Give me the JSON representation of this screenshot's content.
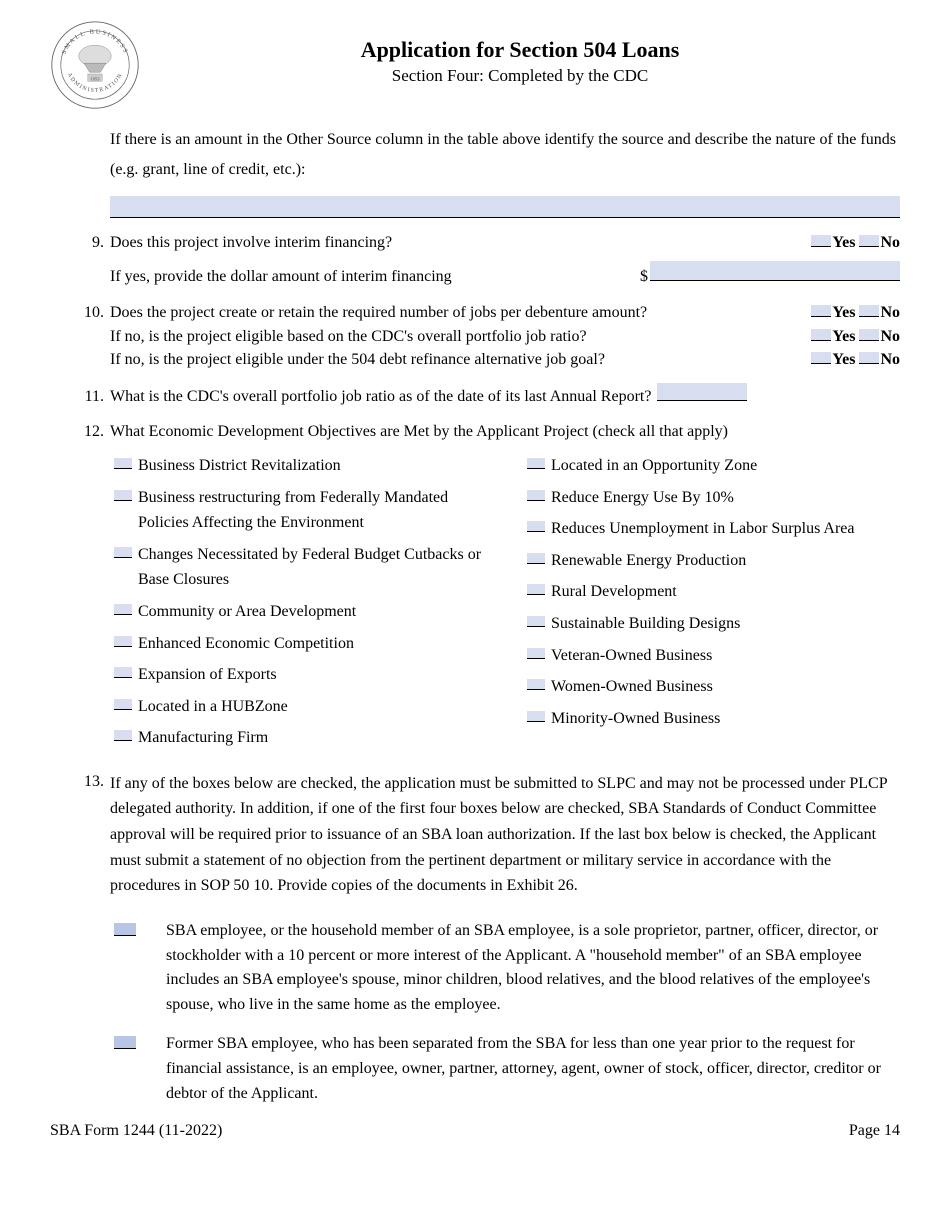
{
  "header": {
    "title": "Application for Section 504 Loans",
    "subtitle": "Section Four: Completed by the CDC",
    "seal_text_top": "SMALL BUSINESS",
    "seal_text_bottom": "ADMINISTRATION",
    "seal_year": "1953"
  },
  "intro": "If there is an amount in the Other Source column in the table above identify the source and describe the nature of the funds (e.g. grant, line of credit, etc.):",
  "q9": {
    "num": "9.",
    "text": "Does this project involve interim financing?",
    "sub": "If yes, provide the dollar amount of interim financing",
    "dollar": "$"
  },
  "q10": {
    "num": "10.",
    "line1": "Does the project create or retain the required number of jobs per debenture amount?",
    "line2": "If no, is the project eligible based on the CDC's overall portfolio job ratio?",
    "line3": "If no, is the project eligible under the 504 debt refinance alternative job goal?"
  },
  "q11": {
    "num": "11.",
    "text": "What is the CDC's overall portfolio job ratio as of the date of its last Annual Report?"
  },
  "q12": {
    "num": "12.",
    "text": "What Economic Development Objectives are Met by the Applicant Project (check all that apply)",
    "left": [
      "Business District Revitalization",
      "Business restructuring from Federally Mandated Policies Affecting the Environment",
      "Changes Necessitated by Federal Budget Cutbacks or Base Closures",
      "Community or Area Development",
      "Enhanced Economic Competition",
      "Expansion of Exports",
      "Located in a HUBZone",
      "Manufacturing Firm"
    ],
    "right": [
      "Located in an Opportunity Zone",
      "Reduce Energy Use By 10%",
      "Reduces Unemployment in Labor Surplus Area",
      "Renewable Energy Production",
      "Rural Development",
      "Sustainable Building Designs",
      "Veteran-Owned Business",
      "Women-Owned Business",
      "Minority-Owned Business"
    ]
  },
  "q13": {
    "num": "13.",
    "text": "If any of the boxes below are checked, the application must be submitted to SLPC and may not be processed under PLCP delegated authority. In addition, if one of the first four boxes below are checked, SBA Standards of Conduct Committee approval will be required prior to issuance of an SBA loan authorization. If the last box below is checked, the Applicant must submit a statement of no objection from the pertinent department or military service in accordance with the procedures in SOP 50 10. Provide copies of the documents in Exhibit 26.",
    "items": [
      "SBA employee, or the household member of an SBA employee, is a sole proprietor, partner, officer, director, or stockholder with a 10 percent or more interest of the Applicant. A \"household member\" of an SBA employee includes an SBA employee's spouse, minor children, blood relatives, and the blood relatives of the employee's spouse, who live in the same home as the employee.",
      "Former SBA employee, who has been separated from the SBA for less than one year prior to the request for financial assistance, is an employee, owner, partner, attorney, agent, owner of stock, officer, director, creditor or debtor of the Applicant."
    ]
  },
  "yn": {
    "yes": "Yes",
    "no": "No"
  },
  "footer": {
    "left": "SBA Form 1244 (11-2022)",
    "right": "Page 14"
  },
  "colors": {
    "fill_bg": "#d6deef",
    "fill_bg_alt": "#b8c6e6",
    "text": "#000000",
    "page_bg": "#ffffff"
  }
}
